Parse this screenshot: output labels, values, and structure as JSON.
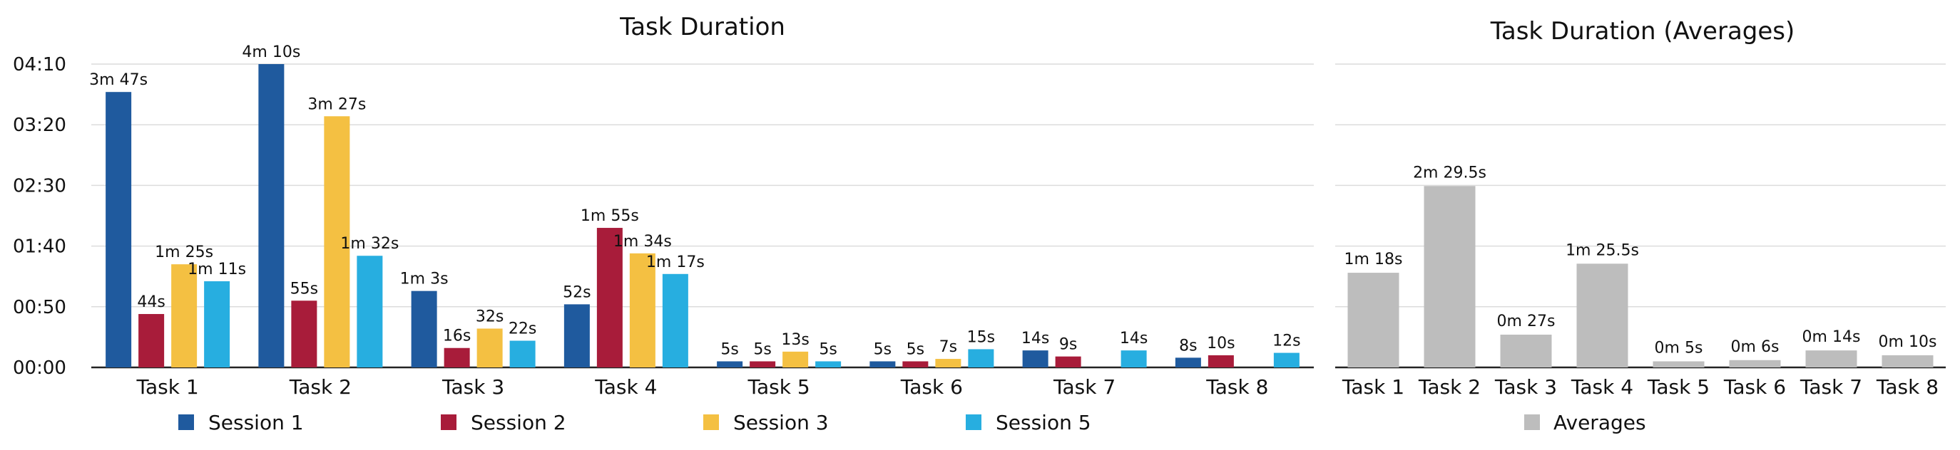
{
  "chart_data": [
    {
      "type": "bar",
      "title": "Task Duration",
      "categories": [
        "Task 1",
        "Task 2",
        "Task 3",
        "Task 4",
        "Task 5",
        "Task 6",
        "Task 7",
        "Task 8"
      ],
      "yticks": [
        "00:00",
        "00:50",
        "01:40",
        "02:30",
        "03:20",
        "04:10"
      ],
      "ylim": [
        0,
        250
      ],
      "y_unit": "seconds",
      "grid": true,
      "legend_position": "bottom",
      "series": [
        {
          "name": "Session 1",
          "color": "#1f5a9e",
          "values": [
            227,
            250,
            63,
            52,
            5,
            5,
            14,
            8
          ],
          "labels": [
            "3m 47s",
            "4m 10s",
            "1m 3s",
            "52s",
            "5s",
            "5s",
            "14s",
            "8s"
          ]
        },
        {
          "name": "Session 2",
          "color": "#a81c3a",
          "values": [
            44,
            55,
            16,
            115,
            5,
            5,
            9,
            10
          ],
          "labels": [
            "44s",
            "55s",
            "16s",
            "1m 55s",
            "5s",
            "5s",
            "9s",
            "10s"
          ]
        },
        {
          "name": "Session 3",
          "color": "#f4c042",
          "values": [
            85,
            207,
            32,
            94,
            13,
            7,
            null,
            null
          ],
          "labels": [
            "1m 25s",
            "3m 27s",
            "32s",
            "1m 34s",
            "13s",
            "7s",
            "",
            ""
          ]
        },
        {
          "name": "Session 5",
          "color": "#27aee0",
          "values": [
            71,
            92,
            22,
            77,
            5,
            15,
            14,
            12
          ],
          "labels": [
            "1m 11s",
            "1m 32s",
            "22s",
            "1m 17s",
            "5s",
            "15s",
            "14s",
            "12s"
          ]
        }
      ]
    },
    {
      "type": "bar",
      "title": "Task Duration (Averages)",
      "categories": [
        "Task 1",
        "Task 2",
        "Task 3",
        "Task 4",
        "Task 5",
        "Task 6",
        "Task 7",
        "Task 8"
      ],
      "ylim": [
        0,
        250
      ],
      "y_unit": "seconds",
      "grid": true,
      "legend_position": "bottom",
      "series": [
        {
          "name": "Averages",
          "color": "#bdbdbd",
          "values": [
            78,
            149.5,
            27,
            85.5,
            5,
            6,
            14,
            10
          ],
          "labels": [
            "1m 18s",
            "2m 29.5s",
            "0m 27s",
            "1m 25.5s",
            "0m 5s",
            "0m 6s",
            "0m 14s",
            "0m 10s"
          ]
        }
      ]
    }
  ]
}
